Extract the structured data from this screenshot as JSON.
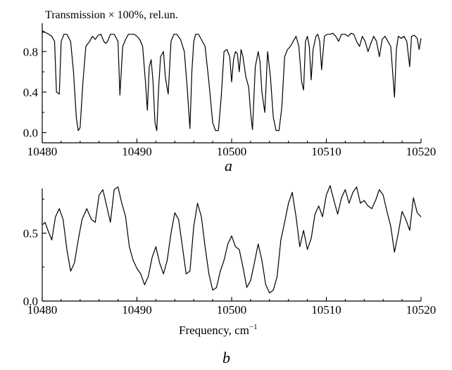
{
  "chart_data": [
    {
      "panel": "a",
      "type": "line",
      "title": "Transmission × 100%, rel.un.",
      "xlabel": "",
      "ylabel": "",
      "xlim": [
        10480,
        10520
      ],
      "ylim": [
        -0.1,
        1.1
      ],
      "x_ticks": [
        10480,
        10490,
        10500,
        10510,
        10520
      ],
      "x_tick_labels": [
        "10480",
        "10490",
        "10500",
        "10510",
        "10520"
      ],
      "y_ticks": [
        0.0,
        0.4,
        0.8
      ],
      "y_tick_labels": [
        "0.0",
        "0.4",
        "0.8"
      ],
      "series": [
        {
          "x": [
            10480,
            10480.3,
            10480.7,
            10481,
            10481.3,
            10481.5,
            10481.8,
            10482,
            10482.3,
            10482.6,
            10483,
            10483.3,
            10483.6,
            10483.8,
            10484,
            10484.3,
            10484.6,
            10485,
            10485.3,
            10485.6,
            10485.9,
            10486.2,
            10486.5,
            10486.7,
            10486.9,
            10487.2,
            10487.6,
            10488,
            10488.2,
            10488.5,
            10488.8,
            10489.1,
            10489.4,
            10489.7,
            10490,
            10490.3,
            10490.6,
            10490.9,
            10491.1,
            10491.3,
            10491.5,
            10491.7,
            10491.9,
            10492.1,
            10492.3,
            10492.5,
            10492.8,
            10493,
            10493.3,
            10493.6,
            10493.9,
            10494.2,
            10494.6,
            10495,
            10495.3,
            10495.6,
            10495.8,
            10496,
            10496.2,
            10496.5,
            10496.8,
            10497.2,
            10497.6,
            10498,
            10498.3,
            10498.6,
            10498.9,
            10499.2,
            10499.5,
            10499.8,
            10500,
            10500.2,
            10500.4,
            10500.6,
            10500.8,
            10501,
            10501.2,
            10501.5,
            10501.8,
            10502,
            10502.2,
            10502.5,
            10502.8,
            10503,
            10503.2,
            10503.5,
            10503.8,
            10504.1,
            10504.4,
            10504.7,
            10505,
            10505.3,
            10505.6,
            10505.9,
            10506.2,
            10506.5,
            10506.8,
            10507.1,
            10507.4,
            10507.6,
            10507.8,
            10508,
            10508.2,
            10508.4,
            10508.6,
            10508.9,
            10509.1,
            10509.3,
            10509.5,
            10509.8,
            10510.1,
            10510.4,
            10510.7,
            10511,
            10511.3,
            10511.6,
            10512,
            10512.3,
            10512.6,
            10512.9,
            10513.2,
            10513.5,
            10513.8,
            10514.1,
            10514.4,
            10514.7,
            10515,
            10515.3,
            10515.6,
            10515.9,
            10516.2,
            10516.5,
            10516.8,
            10517,
            10517.2,
            10517.4,
            10517.6,
            10517.9,
            10518.2,
            10518.5,
            10518.8,
            10519,
            10519.3,
            10519.6,
            10519.8,
            10520
          ],
          "y": [
            0.99,
            0.99,
            0.97,
            0.95,
            0.9,
            0.4,
            0.38,
            0.9,
            0.97,
            0.97,
            0.9,
            0.6,
            0.15,
            0.02,
            0.05,
            0.5,
            0.85,
            0.9,
            0.95,
            0.92,
            0.96,
            0.97,
            0.9,
            0.88,
            0.9,
            0.97,
            0.97,
            0.9,
            0.37,
            0.85,
            0.92,
            0.97,
            0.97,
            0.97,
            0.95,
            0.92,
            0.85,
            0.5,
            0.22,
            0.65,
            0.72,
            0.5,
            0.1,
            0.02,
            0.45,
            0.75,
            0.8,
            0.55,
            0.38,
            0.9,
            0.97,
            0.97,
            0.92,
            0.8,
            0.45,
            0.04,
            0.6,
            0.9,
            0.97,
            0.97,
            0.92,
            0.85,
            0.5,
            0.1,
            0.02,
            0.02,
            0.35,
            0.8,
            0.82,
            0.75,
            0.5,
            0.72,
            0.8,
            0.78,
            0.6,
            0.82,
            0.75,
            0.55,
            0.45,
            0.2,
            0.03,
            0.65,
            0.8,
            0.7,
            0.4,
            0.2,
            0.8,
            0.55,
            0.15,
            0.02,
            0.02,
            0.25,
            0.75,
            0.82,
            0.85,
            0.9,
            0.95,
            0.85,
            0.5,
            0.42,
            0.9,
            0.95,
            0.85,
            0.52,
            0.82,
            0.95,
            0.97,
            0.9,
            0.62,
            0.95,
            0.97,
            0.97,
            0.98,
            0.95,
            0.9,
            0.97,
            0.97,
            0.95,
            0.98,
            0.97,
            0.9,
            0.85,
            0.95,
            0.9,
            0.8,
            0.88,
            0.95,
            0.9,
            0.75,
            0.92,
            0.95,
            0.9,
            0.85,
            0.6,
            0.35,
            0.82,
            0.95,
            0.93,
            0.95,
            0.9,
            0.65,
            0.95,
            0.96,
            0.93,
            0.82,
            0.93
          ],
          "color": "#000000"
        }
      ]
    },
    {
      "panel": "b",
      "type": "line",
      "title": "",
      "xlabel": "Frequency, cm",
      "xlabel_superscript": "−1",
      "ylabel": "",
      "xlim": [
        10480,
        10520
      ],
      "ylim": [
        0,
        0.88
      ],
      "x_ticks": [
        10480,
        10490,
        10500,
        10510,
        10520
      ],
      "x_tick_labels": [
        "10480",
        "10490",
        "10500",
        "10510",
        "10520"
      ],
      "y_ticks": [
        0.0,
        0.5
      ],
      "y_tick_labels": [
        "0.0",
        "0.5"
      ],
      "series": [
        {
          "x": [
            10480,
            10480.3,
            10480.6,
            10481,
            10481.4,
            10481.8,
            10482.2,
            10482.6,
            10483,
            10483.4,
            10483.8,
            10484.2,
            10484.7,
            10485.2,
            10485.6,
            10486,
            10486.4,
            10486.8,
            10487.2,
            10487.6,
            10488,
            10488.4,
            10488.8,
            10489.2,
            10489.6,
            10490,
            10490.4,
            10490.8,
            10491.2,
            10491.6,
            10492,
            10492.4,
            10492.8,
            10493.2,
            10493.6,
            10494,
            10494.4,
            10494.8,
            10495.2,
            10495.6,
            10496,
            10496.4,
            10496.8,
            10497.2,
            10497.6,
            10498,
            10498.4,
            10498.8,
            10499.2,
            10499.6,
            10500,
            10500.4,
            10500.8,
            10501.2,
            10501.6,
            10502,
            10502.4,
            10502.8,
            10503.2,
            10503.6,
            10504,
            10504.4,
            10504.8,
            10505.2,
            10505.6,
            10506,
            10506.4,
            10506.8,
            10507.2,
            10507.6,
            10508,
            10508.4,
            10508.8,
            10509.2,
            10509.6,
            10510,
            10510.4,
            10510.8,
            10511.2,
            10511.6,
            10512,
            10512.4,
            10512.8,
            10513.2,
            10513.6,
            10514,
            10514.4,
            10514.8,
            10515.2,
            10515.6,
            10516,
            10516.4,
            10516.8,
            10517.2,
            10517.6,
            10518,
            10518.4,
            10518.8,
            10519.2,
            10519.6,
            10520
          ],
          "y": [
            0.56,
            0.58,
            0.52,
            0.45,
            0.62,
            0.68,
            0.6,
            0.38,
            0.22,
            0.28,
            0.45,
            0.6,
            0.68,
            0.6,
            0.58,
            0.78,
            0.82,
            0.7,
            0.58,
            0.82,
            0.84,
            0.72,
            0.62,
            0.4,
            0.3,
            0.24,
            0.2,
            0.12,
            0.18,
            0.32,
            0.4,
            0.28,
            0.2,
            0.3,
            0.5,
            0.65,
            0.6,
            0.4,
            0.2,
            0.22,
            0.55,
            0.72,
            0.62,
            0.4,
            0.2,
            0.08,
            0.1,
            0.22,
            0.3,
            0.42,
            0.48,
            0.4,
            0.38,
            0.25,
            0.1,
            0.15,
            0.28,
            0.42,
            0.3,
            0.12,
            0.06,
            0.08,
            0.18,
            0.45,
            0.58,
            0.72,
            0.8,
            0.62,
            0.4,
            0.52,
            0.38,
            0.46,
            0.64,
            0.7,
            0.62,
            0.78,
            0.85,
            0.74,
            0.64,
            0.76,
            0.82,
            0.72,
            0.8,
            0.84,
            0.72,
            0.74,
            0.7,
            0.68,
            0.74,
            0.82,
            0.78,
            0.66,
            0.55,
            0.36,
            0.5,
            0.66,
            0.6,
            0.52,
            0.76,
            0.65,
            0.62
          ],
          "color": "#000000"
        }
      ]
    }
  ]
}
